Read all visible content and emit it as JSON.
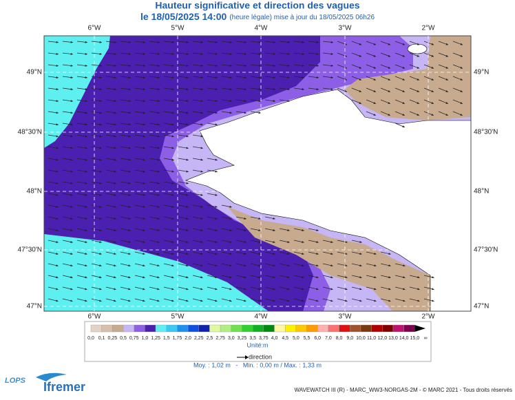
{
  "header": {
    "title": "Hauteur significative et direction des vagues",
    "date": "le 18/05/2025 14:00",
    "note": "(heure légale) mise à jour du 18/05/2025 06h26"
  },
  "map": {
    "lon_labels": [
      "6°W",
      "5°W",
      "4°W",
      "3°W",
      "2°W"
    ],
    "lat_labels": [
      "49°N",
      "48°30'N",
      "48°N",
      "47°30'N",
      "47°N"
    ]
  },
  "legend": {
    "labels": [
      "0,0",
      "0,1",
      "0,25",
      "0,5",
      "0,75",
      "1,0",
      "1,25",
      "1,5",
      "1,75",
      "2,0",
      "2,25",
      "2,5",
      "2,75",
      "3,0",
      "3,25",
      "3,5",
      "3,75",
      "4,0",
      "4,5",
      "5,0",
      "5,5",
      "6,0",
      "7,0",
      "8,0",
      "9,0",
      "10,0",
      "11,0",
      "12,0",
      "13,0",
      "14,0",
      "15,0",
      "∞"
    ],
    "colors": [
      "#e2d3c4",
      "#d6c0ab",
      "#c8ab8f",
      "#c6b6f6",
      "#8c5fe6",
      "#4b1fb0",
      "#5ef0f0",
      "#3cc8f0",
      "#2090f0",
      "#1050e0",
      "#1020b0",
      "#e0f8a0",
      "#b0f080",
      "#70e050",
      "#30d030",
      "#10b020",
      "#008a10",
      "#fff8a0",
      "#fff000",
      "#ffc800",
      "#ff9a00",
      "#ffb0b0",
      "#ff7070",
      "#e01010",
      "#a0522d",
      "#7a3a10",
      "#b00000",
      "#800000",
      "#c01070",
      "#800050",
      "#000000"
    ],
    "unit": "Unité:m",
    "direction": "direction"
  },
  "stats": "Moy. : 1,02 m   -   Min. : 0,00 m / Max. : 1,33 m",
  "footer": "WAVEWATCH III (R) - MARC_WW3-NORGAS-2M - © MARC 2021 - Tous droits réservés",
  "logos": {
    "lops": "LOPS",
    "ifremer": "Ifremer"
  }
}
